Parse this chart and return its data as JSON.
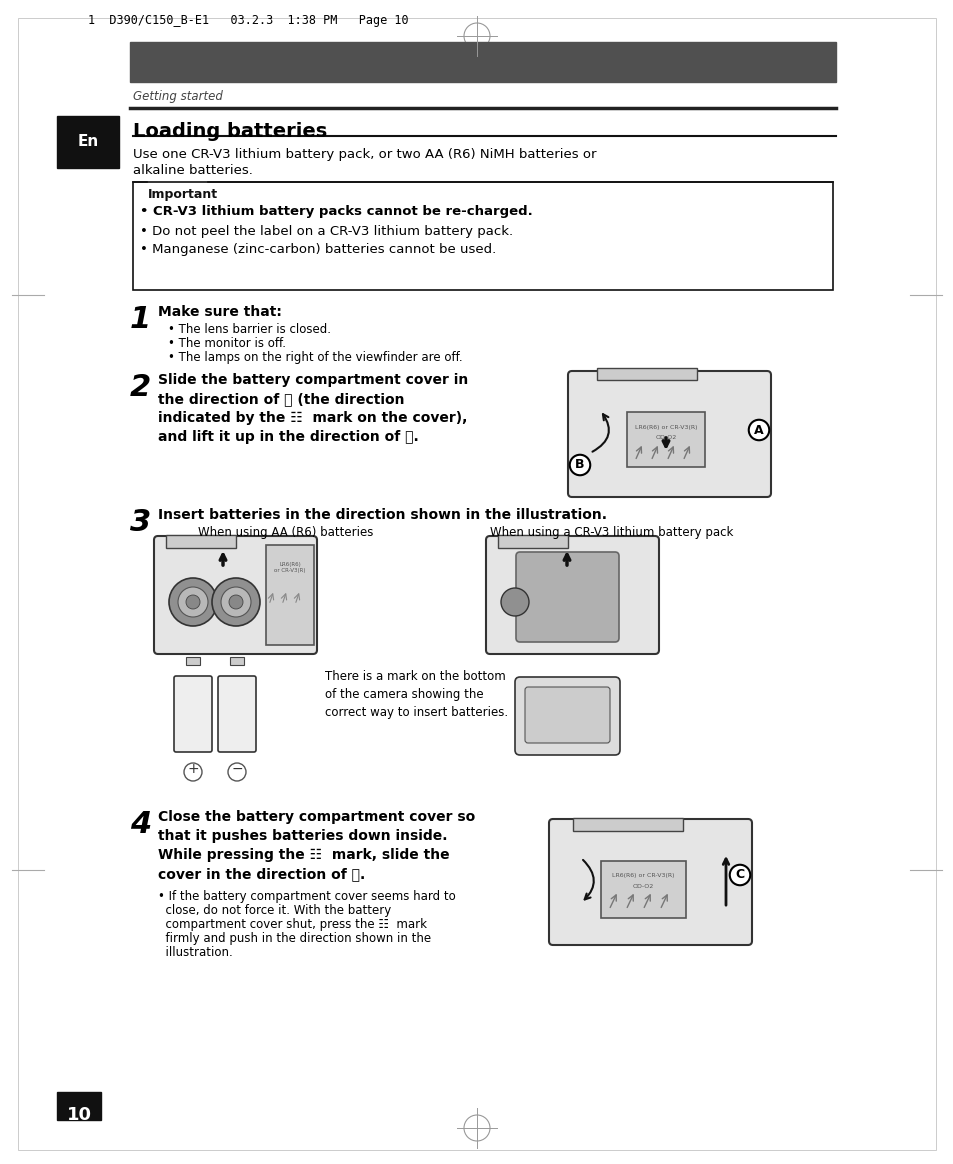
{
  "page_header": "1  D390/C150_B-E1   03.2.3  1:38 PM   Page 10",
  "section_label": "Getting started",
  "title": "Loading batteries",
  "lang_tag": "En",
  "intro_line1": "Use one CR-V3 lithium battery pack, or two AA (R6) NiMH batteries or",
  "intro_line2": "alkaline batteries.",
  "important_label": "Important",
  "imp_item1": "• CR-V3 lithium battery packs cannot be re-charged.",
  "imp_item2": "• Do not peel the label on a CR-V3 lithium battery pack.",
  "imp_item3": "• Manganese (zinc-carbon) batteries cannot be used.",
  "step1_num": "1",
  "step1_heading": "Make sure that:",
  "step1_a": "• The lens barrier is closed.",
  "step1_b": "• The monitor is off.",
  "step1_c": "• The lamps on the right of the viewfinder are off.",
  "step2_num": "2",
  "step2_l1": "Slide the battery compartment cover in",
  "step2_l2": "the direction of Ⓐ (the direction",
  "step2_l3": "indicated by the ☷  mark on the cover),",
  "step2_l4": "and lift it up in the direction of Ⓑ.",
  "step3_num": "3",
  "step3_heading": "Insert batteries in the direction shown in the illustration.",
  "cap_left": "When using AA (R6) batteries",
  "cap_right": "When using a CR-V3 lithium battery pack",
  "note_text": "There is a mark on the bottom\nof the camera showing the\ncorrect way to insert batteries.",
  "step4_num": "4",
  "step4_l1": "Close the battery compartment cover so",
  "step4_l2": "that it pushes batteries down inside.",
  "step4_l3": "While pressing the ☷  mark, slide the",
  "step4_l4": "cover in the direction of Ⓒ.",
  "step4_sub1": "• If the battery compartment cover seems hard to",
  "step4_sub2": "  close, do not force it. With the battery",
  "step4_sub3": "  compartment cover shut, press the ☷  mark",
  "step4_sub4": "  firmly and push in the direction shown in the",
  "step4_sub5": "  illustration.",
  "page_num": "10",
  "bg_color": "#ffffff",
  "dark_bar": "#555555",
  "black": "#000000",
  "gray_cam": "#e0e0e0",
  "gray_slot": "#c0c0c0"
}
